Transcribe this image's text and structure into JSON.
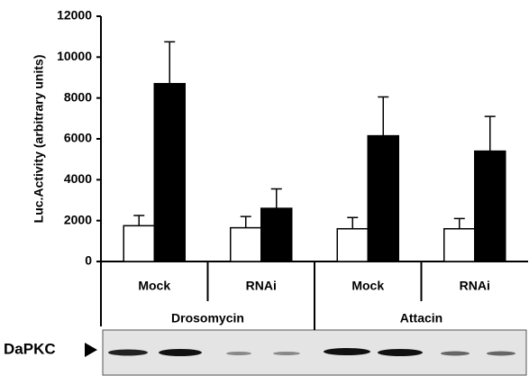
{
  "chart_data": {
    "type": "bar",
    "ylabel": "Luc.Activity (arbitrary units)",
    "categories": [
      "Mock",
      "RNAi",
      "Mock",
      "RNAi"
    ],
    "groups": [
      "Drosomycin",
      "Attacin"
    ],
    "series": [
      {
        "color": "#ffffff",
        "values": [
          1750,
          1650,
          1600,
          1600
        ],
        "errors": [
          500,
          550,
          550,
          500
        ]
      },
      {
        "color": "#000000",
        "values": [
          8700,
          2600,
          6150,
          5400
        ],
        "errors": [
          2050,
          950,
          1900,
          1700
        ]
      }
    ],
    "ylim": [
      0,
      12000
    ],
    "yticks": [
      0,
      2000,
      4000,
      6000,
      8000,
      10000,
      12000
    ],
    "blot_label": "DaPKC"
  }
}
